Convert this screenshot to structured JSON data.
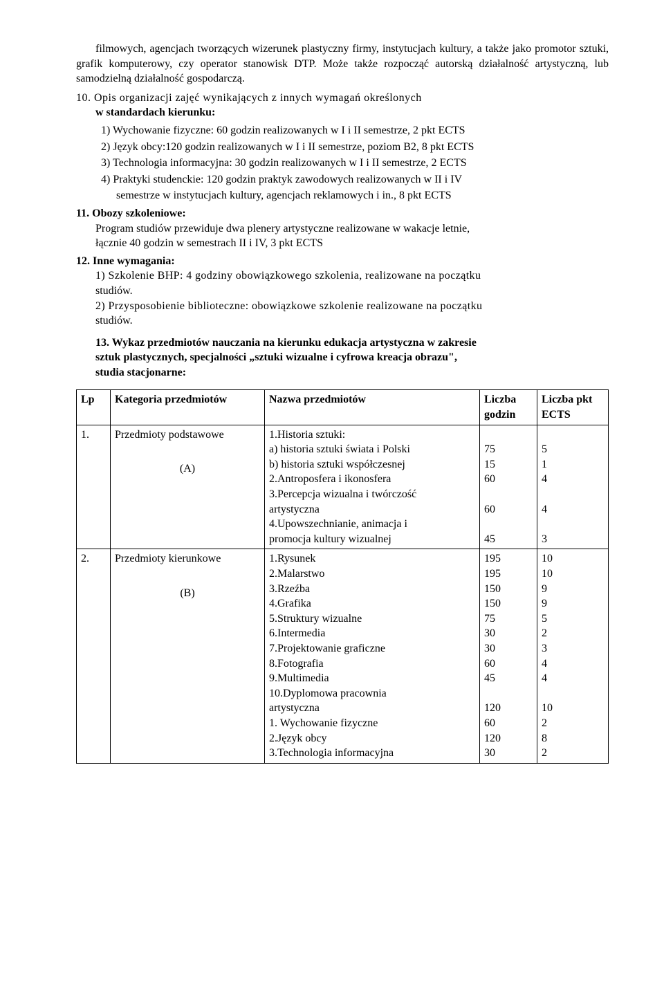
{
  "intro_line1": "filmowych, agencjach tworzących wizerunek plastyczny firmy, instytucjach kultury,",
  "intro_line2": "a także jako promotor sztuki, grafik komputerowy, czy operator stanowisk DTP. Może",
  "intro_line3": "także rozpocząć autorską działalność artystyczną, lub samodzielną działalność",
  "intro_line4": "gospodarczą.",
  "s10_lead_a": "10. Opis  organizacji  zajęć  wynikających  z  innych  wymagań  określonych",
  "s10_lead_b": "w standardach kierunku:",
  "s10_1": "1)  Wychowanie fizyczne: 60 godzin realizowanych w I i II semestrze, 2 pkt ECTS",
  "s10_2": "2)  Język obcy:120 godzin realizowanych w I i II semestrze, poziom B2, 8 pkt ECTS",
  "s10_3": "3)  Technologia informacyjna: 30 godzin realizowanych w I i II semestrze, 2  ECTS",
  "s10_4a": "4)  Praktyki studenckie: 120 godzin praktyk zawodowych realizowanych w II i IV",
  "s10_4b": "semestrze w instytucjach kultury, agencjach reklamowych i in., 8 pkt ECTS",
  "s11_head": "11. Obozy szkoleniowe:",
  "s11_body1": "Program studiów przewiduje dwa plenery artystyczne realizowane w wakacje letnie,",
  "s11_body2": "łącznie 40 godzin w semestrach II i IV, 3 pkt ECTS",
  "s12_head": "12. Inne wymagania:",
  "s12_1a": "1) Szkolenie BHP: 4 godziny obowiązkowego szkolenia, realizowane na początku",
  "s12_1b": "studiów.",
  "s12_2a": "2) Przysposobienie biblioteczne: obowiązkowe szkolenie realizowane na początku",
  "s12_2b": "studiów.",
  "s13_a": "13. Wykaz przedmiotów nauczania na kierunku edukacja artystyczna w zakresie",
  "s13_b": "sztuk plastycznych, specjalności „sztuki wizualne i cyfrowa kreacja obrazu\",",
  "s13_c": "studia stacjonarne:",
  "th_lp": "Lp",
  "th_cat": "Kategoria przedmiotów",
  "th_name": "Nazwa przedmiotów",
  "th_godz": "Liczba godzin",
  "th_ects": "Liczba pkt ECTS",
  "r1_lp": "1.",
  "r1_cat1": "Przedmioty podstawowe",
  "r1_cat2": "(A)",
  "r1_n1": "1.Historia sztuki:",
  "r1_n2": "a) historia sztuki świata i Polski",
  "r1_n3": "b) historia  sztuki współczesnej",
  "r1_n4": "2.Antroposfera i ikonosfera",
  "r1_n5": "3.Percepcja wizualna i twórczość",
  "r1_n5b": "artystyczna",
  "r1_n6": "4.Upowszechnianie, animacja i",
  "r1_n6b": "promocja kultury wizualnej",
  "r1_g2": "75",
  "r1_e2": "5",
  "r1_g3": "15",
  "r1_e3": "1",
  "r1_g4": "60",
  "r1_e4": "4",
  "r1_g5": "60",
  "r1_e5": "4",
  "r1_g6": "45",
  "r1_e6": "3",
  "r2_lp": "2.",
  "r2_cat1": "Przedmioty kierunkowe",
  "r2_cat2": "(B)",
  "r2_n1": "1.Rysunek",
  "r2_g1": "195",
  "r2_e1": "10",
  "r2_n2": "2.Malarstwo",
  "r2_g2": "195",
  "r2_e2": "10",
  "r2_n3": "3.Rzeźba",
  "r2_g3": "150",
  "r2_e3": "9",
  "r2_n4": "4.Grafika",
  "r2_g4": "150",
  "r2_e4": "9",
  "r2_n5": "5.Struktury wizualne",
  "r2_g5": "75",
  "r2_e5": "5",
  "r2_n6": "6.Intermedia",
  "r2_g6": "30",
  "r2_e6": "2",
  "r2_n7": "7.Projektowanie graficzne",
  "r2_g7": "30",
  "r2_e7": "3",
  "r2_n8": "8.Fotografia",
  "r2_g8": "60",
  "r2_e8": "4",
  "r2_n9": "9.Multimedia",
  "r2_g9": "45",
  "r2_e9": "4",
  "r2_n10": "10.Dyplomowa pracownia",
  "r2_n10b": "artystyczna",
  "r2_g10": "120",
  "r2_e10": "10",
  "r2_n11": "1. Wychowanie fizyczne",
  "r2_g11": "60",
  "r2_e11": "2",
  "r2_n12": "2.Język obcy",
  "r2_g12": "120",
  "r2_e12": "8",
  "r2_n13": "3.Technologia informacyjna",
  "r2_g13": "30",
  "r2_e13": "2"
}
